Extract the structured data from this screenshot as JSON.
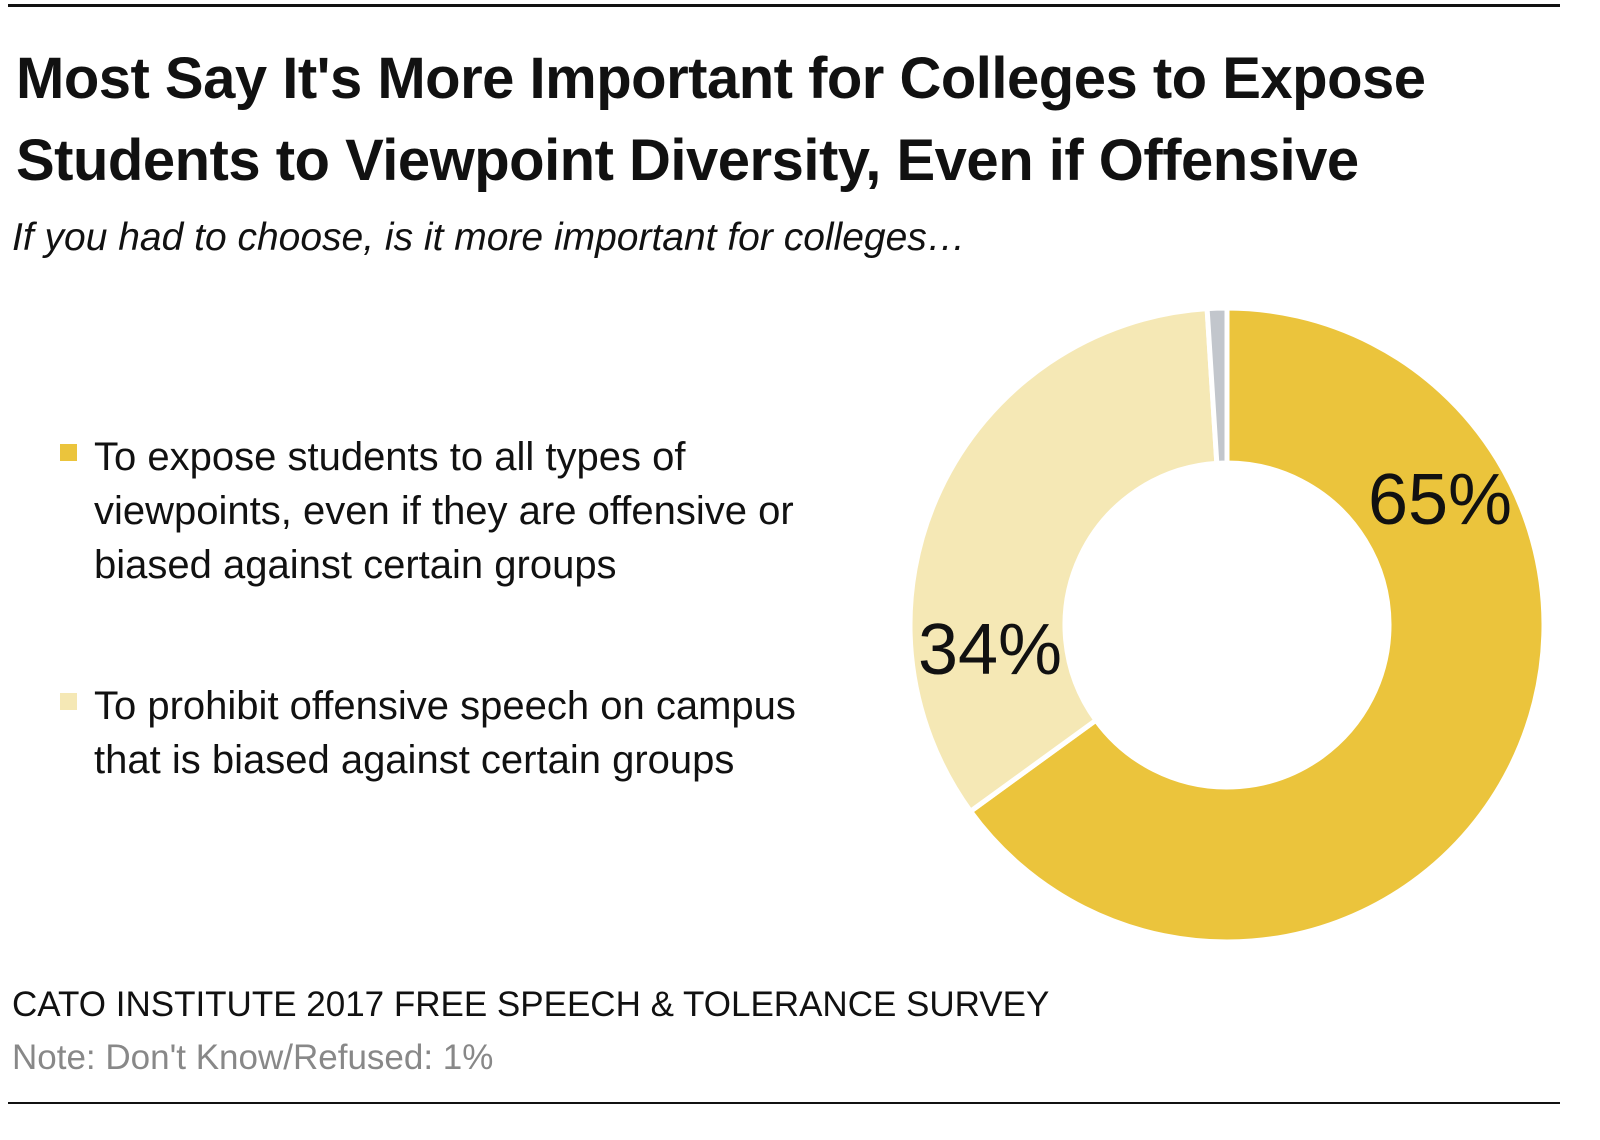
{
  "chart_data": {
    "type": "pie",
    "donut": true,
    "title": "Most Say It's More Important for Colleges to Expose Students to Viewpoint Diversity, Even if Offensive",
    "subtitle": "If you had to choose, is it more important for colleges…",
    "slices": [
      {
        "label": "To expose students to all types of viewpoints, even if they are offensive or biased against certain groups",
        "value": 65,
        "data_label": "65%",
        "color": "#EBC43C"
      },
      {
        "label": "To prohibit offensive speech on campus that is biased against certain groups",
        "value": 34,
        "data_label": "34%",
        "color": "#F5E8B5"
      },
      {
        "label": "Don't Know/Refused",
        "value": 1,
        "data_label": "",
        "color": "#C2C6CC"
      }
    ],
    "legend_position": "left"
  },
  "footer": {
    "source": "CATO INSTITUTE 2017 FREE SPEECH & TOLERANCE SURVEY",
    "note": "Note: Don't Know/Refused: 1%"
  }
}
